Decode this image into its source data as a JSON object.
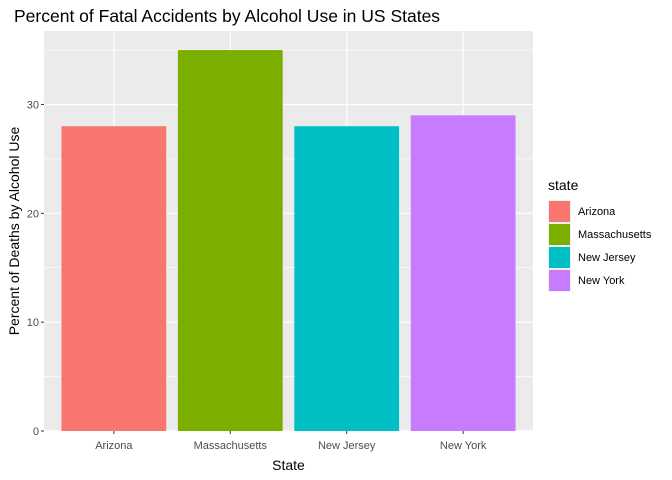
{
  "chart_data": {
    "type": "bar",
    "title": "Percent of Fatal Accidents by Alcohol Use in US States",
    "xlabel": "State",
    "ylabel": "Percent of Deaths by Alcohol Use",
    "categories": [
      "Arizona",
      "Massachusetts",
      "New Jersey",
      "New York"
    ],
    "values": [
      28,
      35,
      28,
      29
    ],
    "colors": [
      "#F8766D",
      "#7CAE00",
      "#00BFC4",
      "#C77CFF"
    ],
    "ylim": [
      0,
      36.75
    ],
    "yticks": [
      0,
      10,
      20,
      30
    ],
    "grid": true,
    "legend": {
      "title": "state",
      "placement": "right",
      "entries": [
        "Arizona",
        "Massachusetts",
        "New Jersey",
        "New York"
      ]
    }
  }
}
